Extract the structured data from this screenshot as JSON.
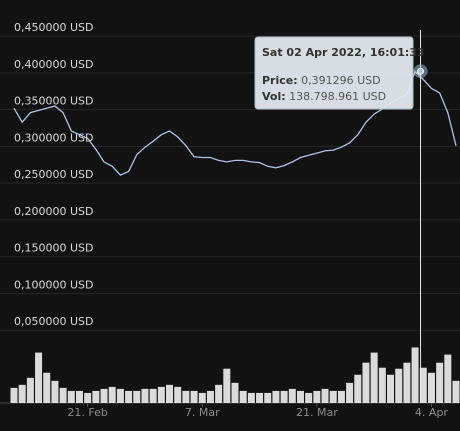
{
  "chart_data": {
    "type": "line",
    "x": [
      "2022-02-12",
      "2022-02-13",
      "2022-02-14",
      "2022-02-15",
      "2022-02-16",
      "2022-02-17",
      "2022-02-18",
      "2022-02-19",
      "2022-02-20",
      "2022-02-21",
      "2022-02-22",
      "2022-02-23",
      "2022-02-24",
      "2022-02-25",
      "2022-02-26",
      "2022-02-27",
      "2022-02-28",
      "2022-03-01",
      "2022-03-02",
      "2022-03-03",
      "2022-03-04",
      "2022-03-05",
      "2022-03-06",
      "2022-03-07",
      "2022-03-08",
      "2022-03-09",
      "2022-03-10",
      "2022-03-11",
      "2022-03-12",
      "2022-03-13",
      "2022-03-14",
      "2022-03-15",
      "2022-03-16",
      "2022-03-17",
      "2022-03-18",
      "2022-03-19",
      "2022-03-20",
      "2022-03-21",
      "2022-03-22",
      "2022-03-23",
      "2022-03-24",
      "2022-03-25",
      "2022-03-26",
      "2022-03-27",
      "2022-03-28",
      "2022-03-29",
      "2022-03-30",
      "2022-03-31",
      "2022-04-01",
      "2022-04-02",
      "2022-04-03",
      "2022-04-04",
      "2022-04-05",
      "2022-04-06",
      "2022-04-07"
    ],
    "values": [
      0.341,
      0.322,
      0.335,
      0.338,
      0.341,
      0.344,
      0.335,
      0.31,
      0.305,
      0.3,
      0.285,
      0.268,
      0.262,
      0.25,
      0.255,
      0.278,
      0.288,
      0.296,
      0.305,
      0.31,
      0.302,
      0.29,
      0.275,
      0.274,
      0.274,
      0.27,
      0.268,
      0.27,
      0.27,
      0.268,
      0.267,
      0.262,
      0.26,
      0.263,
      0.268,
      0.274,
      0.277,
      0.28,
      0.283,
      0.284,
      0.288,
      0.294,
      0.305,
      0.322,
      0.333,
      0.34,
      0.348,
      0.355,
      0.36,
      0.391,
      0.38,
      0.368,
      0.362,
      0.335,
      0.29
    ],
    "volume": [
      37800000,
      45400000,
      63000000,
      126000000,
      75600000,
      55400000,
      37800000,
      30200000,
      30200000,
      25200000,
      30200000,
      35300000,
      40300000,
      35300000,
      30200000,
      30200000,
      35300000,
      35300000,
      40300000,
      45400000,
      40300000,
      30200000,
      30200000,
      25200000,
      30200000,
      45400000,
      85700000,
      50400000,
      30200000,
      25200000,
      25200000,
      25200000,
      30200000,
      30200000,
      35300000,
      30200000,
      25200000,
      30200000,
      35300000,
      30200000,
      30200000,
      50400000,
      70600000,
      100800000,
      126000000,
      88200000,
      70600000,
      85700000,
      100800000,
      138798961,
      88200000,
      75600000,
      100800000,
      121000000,
      55400000
    ],
    "color": "#a9c4e8",
    "volume_color": "#ffffff",
    "xlim": [
      "2022-02-12",
      "2022-04-07"
    ],
    "xticks": [
      {
        "value": "2022-02-21",
        "label": "21. Feb"
      },
      {
        "value": "2022-03-07",
        "label": "7. Mar"
      },
      {
        "value": "2022-03-21",
        "label": "21. Mar"
      },
      {
        "value": "2022-04-04",
        "label": "4. Apr"
      }
    ],
    "ylim": [
      0,
      0.48
    ],
    "yticks": [
      {
        "value": 0.05,
        "label": "0,050000 USD"
      },
      {
        "value": 0.1,
        "label": "0,100000 USD"
      },
      {
        "value": 0.15,
        "label": "0,150000 USD"
      },
      {
        "value": 0.2,
        "label": "0,200000 USD"
      },
      {
        "value": 0.25,
        "label": "0,250000 USD"
      },
      {
        "value": 0.3,
        "label": "0,300000 USD"
      },
      {
        "value": 0.35,
        "label": "0,350000 USD"
      },
      {
        "value": 0.4,
        "label": "0,400000 USD"
      },
      {
        "value": 0.45,
        "label": "0,450000 USD"
      }
    ],
    "y2lim": [
      0,
      145000000
    ],
    "grid": true,
    "tooltip": {
      "x": "2022-04-02T16:01:33",
      "title": "Sat 02 Apr 2022, 16:01:33",
      "price_name": "Price:",
      "price": 0.391296,
      "price_label": "0,391296 USD",
      "volume_name": "Vol:",
      "volume": 138798961,
      "volume_label": "138.798.961 USD"
    }
  }
}
